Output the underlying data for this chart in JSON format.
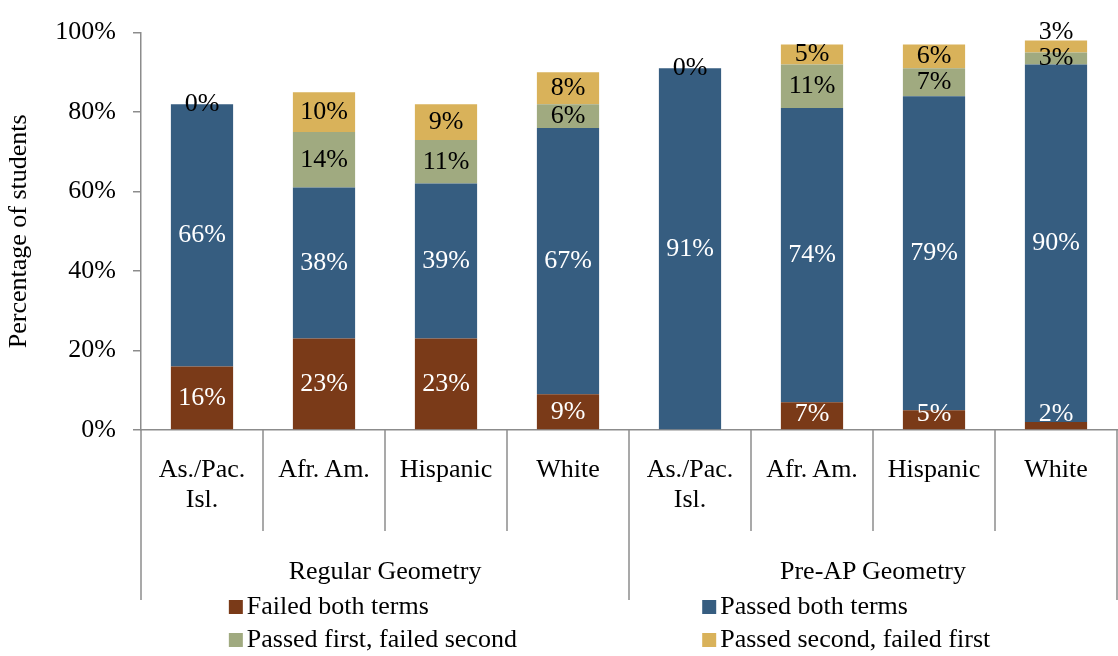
{
  "chart_data": {
    "type": "bar",
    "stacked": true,
    "categories": [
      "As./Pac. Isl.",
      "Afr. Am.",
      "Hispanic",
      "White",
      "As./Pac. Isl.",
      "Afr. Am.",
      "Hispanic",
      "White"
    ],
    "series": [
      {
        "name": "Failed both terms",
        "color": "#7a3a18",
        "values": [
          16,
          23,
          23,
          9,
          0,
          7,
          5,
          2
        ],
        "value_labels": [
          "16%",
          "23%",
          "23%",
          "9%",
          null,
          "7%",
          "5%",
          "2%"
        ]
      },
      {
        "name": "Passed both terms",
        "color": "#365d80",
        "values": [
          66,
          38,
          39,
          67,
          91,
          74,
          79,
          90
        ],
        "value_labels": [
          "66%",
          "38%",
          "39%",
          "67%",
          "91%",
          "74%",
          "79%",
          "90%"
        ]
      },
      {
        "name": "Passed first, failed second",
        "color": "#a0aa80",
        "values": [
          0,
          14,
          11,
          6,
          0,
          11,
          7,
          3
        ],
        "value_labels": [
          null,
          "14%",
          "11%",
          "6%",
          null,
          "11%",
          "7%",
          "3%"
        ]
      },
      {
        "name": "Passed second, failed first",
        "color": "#d9b25a",
        "values": [
          0,
          10,
          9,
          8,
          0,
          5,
          6,
          3
        ],
        "value_labels": [
          "0%",
          "10%",
          "9%",
          "8%",
          "0%",
          "5%",
          "6%",
          "3%"
        ]
      }
    ],
    "ylabel": "Percentage of students",
    "ylim": [
      0,
      100
    ],
    "yticks": [
      {
        "value": 0,
        "label": "0%"
      },
      {
        "value": 20,
        "label": "20%"
      },
      {
        "value": 40,
        "label": "40%"
      },
      {
        "value": 60,
        "label": "60%"
      },
      {
        "value": 80,
        "label": "80%"
      },
      {
        "value": 100,
        "label": "100%"
      }
    ],
    "annotations": [
      "Regular Geometry",
      "Pre-AP Geometry"
    ],
    "legend": "bottom"
  }
}
